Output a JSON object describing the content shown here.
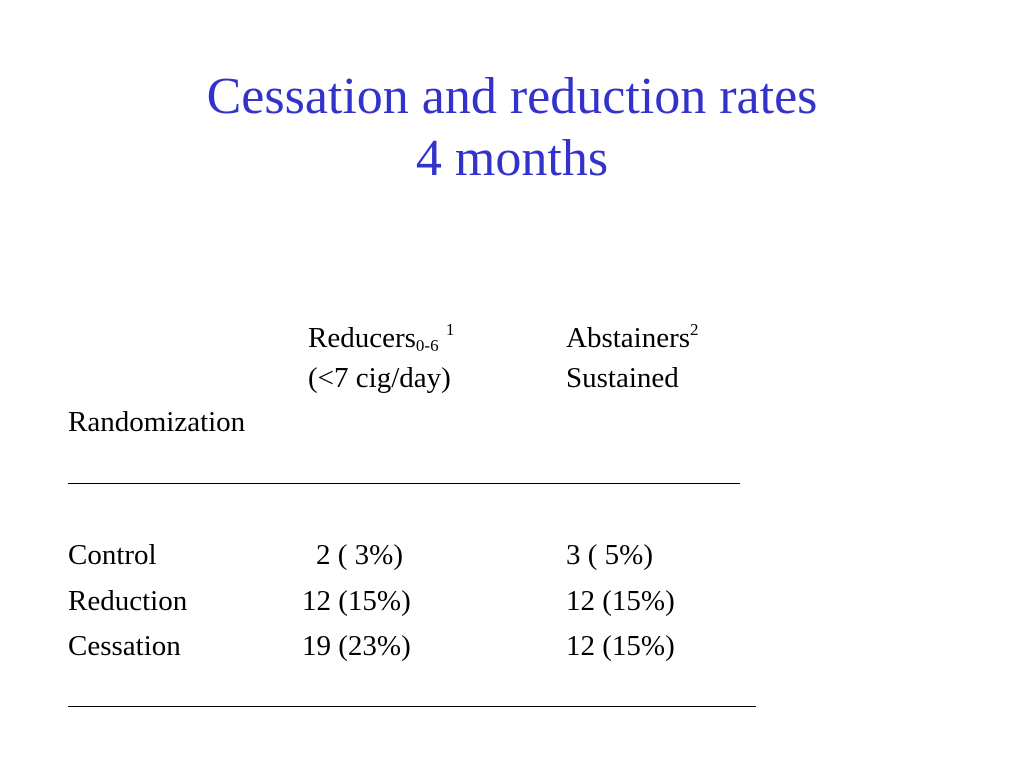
{
  "slide": {
    "title_line1": "Cessation and reduction rates",
    "title_line2": "4 months",
    "title_color": "#3333cc"
  },
  "table": {
    "col1": {
      "header": "Reducers",
      "header_sub": "0-6",
      "header_sup": "1",
      "subheader": "(<7 cig/day)"
    },
    "col2": {
      "header": "Abstainers",
      "header_sup": "2",
      "subheader": "Sustained"
    },
    "row_header": "Randomization",
    "rows": [
      {
        "label": "Control",
        "reducers": "2 (  3%)",
        "abstainers": "3 ( 5%)"
      },
      {
        "label": "Reduction",
        "reducers": "12 (15%)",
        "abstainers": "12 (15%)"
      },
      {
        "label": "Cessation",
        "reducers": "19 (23%)",
        "abstainers": "12 (15%)"
      }
    ]
  }
}
